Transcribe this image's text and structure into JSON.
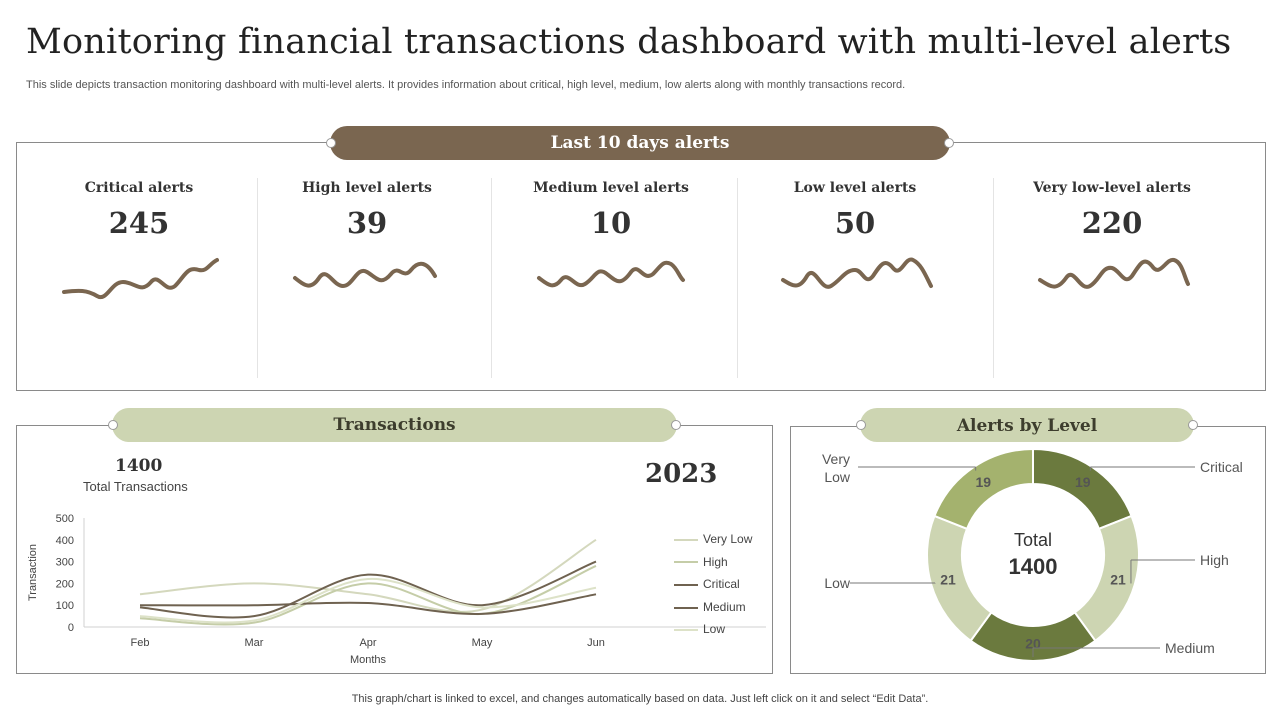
{
  "header": {
    "title": "Monitoring financial transactions dashboard with multi-level alerts",
    "subtitle": "This slide depicts transaction monitoring dashboard with multi-level alerts. It provides information about critical, high level, medium, low alerts along with monthly transactions record."
  },
  "alerts_panel": {
    "heading": "Last 10 days alerts",
    "items": [
      {
        "label": "Critical alerts",
        "value": "245"
      },
      {
        "label": "High level alerts",
        "value": "39"
      },
      {
        "label": "Medium level alerts",
        "value": "10"
      },
      {
        "label": "Low level alerts",
        "value": "50"
      },
      {
        "label": "Very low-level alerts",
        "value": "220"
      }
    ]
  },
  "transactions_panel": {
    "heading": "Transactions",
    "total_value": "1400",
    "total_label": "Total Transactions",
    "year": "2023"
  },
  "alerts_level_panel": {
    "heading": "Alerts by Level",
    "center_label": "Total",
    "center_value": "1400"
  },
  "footer": "This graph/chart is linked to excel,  and changes automatically based on data. Just left click on it and select “Edit Data”.",
  "colors": {
    "brown": "#7a6650",
    "sage": "#cdd5b2",
    "olive_dark": "#6b7a3e",
    "olive_mid": "#a4b26e",
    "olive_light": "#cdd5b2"
  },
  "chart_data": [
    {
      "type": "line",
      "xlabel": "Months",
      "ylabel": "Transaction",
      "categories": [
        "Feb",
        "Mar",
        "Apr",
        "May",
        "Jun"
      ],
      "ylim": [
        0,
        500
      ],
      "yticks": [
        0,
        100,
        200,
        300,
        400,
        500
      ],
      "legend_position": "right",
      "series": [
        {
          "name": "Very Low",
          "color": "#d4d8bd",
          "values": [
            150,
            200,
            150,
            80,
            400
          ]
        },
        {
          "name": "High",
          "color": "#c5cda8",
          "values": [
            40,
            20,
            200,
            60,
            280
          ]
        },
        {
          "name": "Critical",
          "color": "#6f6250",
          "values": [
            90,
            50,
            240,
            100,
            300
          ]
        },
        {
          "name": "Medium",
          "color": "#6f6250",
          "values": [
            100,
            100,
            110,
            60,
            150
          ]
        },
        {
          "name": "Low",
          "color": "#dde2c8",
          "values": [
            50,
            30,
            220,
            90,
            180
          ]
        }
      ]
    },
    {
      "type": "pie",
      "donut": true,
      "labels": [
        "Critical",
        "High",
        "Medium",
        "Low",
        "Very Low"
      ],
      "values": [
        19,
        21,
        20,
        21,
        19
      ],
      "colors": [
        "#6b7a3e",
        "#cdd5b2",
        "#6b7a3e",
        "#cdd5b2",
        "#a4b26e"
      ]
    }
  ]
}
